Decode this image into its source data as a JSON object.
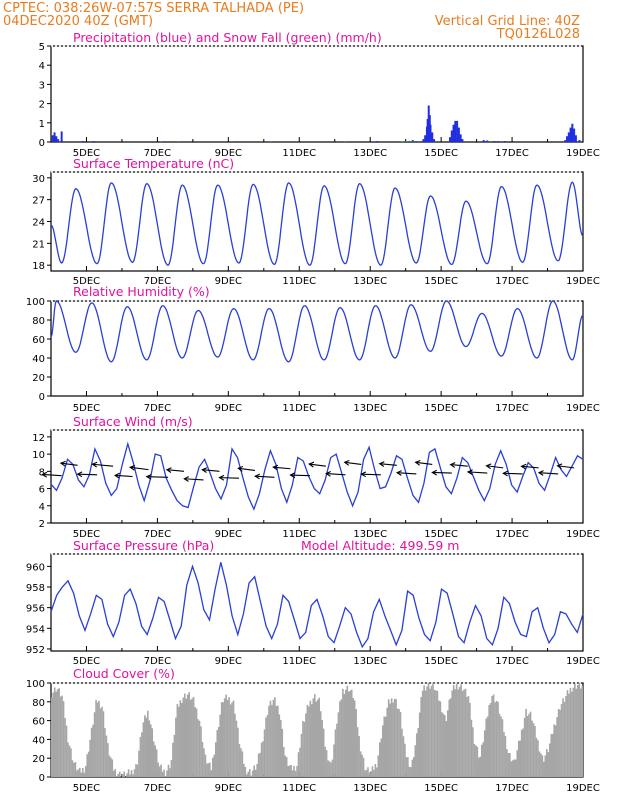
{
  "header": {
    "line1_left": "CPTEC:   038:26W-07:57S   SERRA TALHADA (PE)",
    "line2_left": "04DEC2020 40Z (GMT)",
    "line2_right": "Vertical Grid Line: 40Z",
    "line3_right": "TQ0126L028"
  },
  "colors": {
    "header": "#e87c1e",
    "panel_title": "#e0139c",
    "precip": "#1f2fe0",
    "snow": "#1a9c1a",
    "line": "#2a3fd6",
    "wind_arrow": "#000000",
    "cloud": "#a6a6a6"
  },
  "x_tick_labels": [
    "5DEC",
    "7DEC",
    "9DEC",
    "11DEC",
    "13DEC",
    "15DEC",
    "17DEC",
    "19DEC"
  ],
  "chart_data": [
    {
      "id": "precip",
      "type": "bar",
      "title": "Precipitation (blue) and Snow Fall (green) (mm/h)",
      "ylim": [
        0,
        5
      ],
      "yticks": [
        0,
        1,
        2,
        3,
        4,
        5
      ],
      "x_range_days": [
        4.0,
        19.0
      ],
      "series": [
        {
          "name": "Precipitation",
          "x": [
            4.05,
            4.1,
            4.15,
            4.2,
            4.3,
            4.9,
            5.2,
            7.1,
            7.6,
            9.1,
            10.2,
            12.3,
            13.2,
            14.1,
            14.2,
            14.3,
            14.5,
            14.55,
            14.6,
            14.62,
            14.65,
            14.68,
            14.7,
            14.75,
            14.8,
            15.25,
            15.3,
            15.35,
            15.4,
            15.45,
            15.5,
            15.55,
            15.6,
            16.2,
            16.3,
            16.5,
            16.6,
            16.8,
            18.5,
            18.55,
            18.6,
            18.65,
            18.7,
            18.75,
            18.8,
            18.9
          ],
          "values": [
            0.35,
            0.5,
            0.3,
            0.15,
            0.55,
            0.05,
            0.05,
            0.03,
            0.03,
            0.03,
            0.03,
            0.03,
            0.05,
            0.05,
            0.1,
            0.05,
            0.15,
            0.35,
            0.8,
            1.2,
            1.9,
            1.4,
            0.9,
            0.5,
            0.15,
            0.25,
            0.6,
            0.9,
            1.1,
            1.1,
            0.75,
            0.4,
            0.15,
            0.1,
            0.08,
            0.05,
            0.05,
            0.05,
            0.1,
            0.3,
            0.5,
            0.75,
            0.95,
            0.7,
            0.35,
            0.1
          ]
        },
        {
          "name": "Snow Fall",
          "x": [
            13.9,
            14.0,
            14.1,
            14.2,
            14.3
          ],
          "values": [
            0.02,
            0.04,
            0.04,
            0.03,
            0.02
          ]
        }
      ]
    },
    {
      "id": "temperature",
      "type": "line",
      "title": "Surface Temperature (nC)",
      "ylim": [
        17.2,
        30.8
      ],
      "yticks": [
        18,
        21,
        24,
        27,
        30
      ],
      "x_range_days": [
        4.0,
        19.0
      ],
      "daily": {
        "first_min_day": 4.3,
        "peak_offset": 0.4,
        "min_offset": 1.0,
        "mins": [
          18.3,
          18.2,
          18.4,
          18.0,
          18.2,
          18.3,
          18.1,
          18.0,
          18.2,
          18.0,
          18.3,
          18.1,
          18.2,
          18.4,
          18.6,
          18.8
        ],
        "maxs": [
          28.5,
          29.3,
          29.2,
          29.0,
          29.0,
          29.1,
          29.3,
          28.9,
          29.2,
          28.6,
          27.5,
          26.8,
          28.8,
          29.0,
          29.4,
          27.0
        ]
      },
      "start_value": 23.5,
      "end_value": 22.0
    },
    {
      "id": "humidity",
      "type": "line",
      "title": "Relative Humidity (%)",
      "ylim": [
        0,
        100
      ],
      "yticks": [
        0,
        20,
        40,
        60,
        80,
        100
      ],
      "x_range_days": [
        4.0,
        19.0
      ],
      "daily": {
        "first_max_day": 4.15,
        "min_offset": 0.55,
        "max_offset": 1.0,
        "maxs": [
          100,
          98,
          94,
          95,
          90,
          92,
          92,
          95,
          93,
          95,
          96,
          100,
          87,
          92,
          100,
          86
        ],
        "mins": [
          46,
          36,
          38,
          40,
          41,
          38,
          36,
          38,
          38,
          40,
          47,
          52,
          42,
          40,
          38,
          52
        ]
      },
      "start_value": 62,
      "end_value": 85
    },
    {
      "id": "wind",
      "type": "line",
      "title": "Surface Wind (m/s)",
      "ylim": [
        2,
        12.8
      ],
      "yticks": [
        2,
        4,
        6,
        8,
        10,
        12
      ],
      "x_range_days": [
        4.0,
        19.0
      ],
      "speed": [
        6.5,
        5.8,
        7.2,
        9.4,
        8.8,
        7.0,
        6.2,
        7.6,
        10.6,
        9.2,
        6.6,
        5.2,
        6.0,
        8.8,
        11.2,
        9.0,
        6.4,
        4.6,
        6.8,
        10.0,
        9.8,
        7.2,
        5.8,
        4.6,
        4.0,
        3.8,
        6.2,
        8.5,
        9.4,
        7.8,
        6.0,
        4.8,
        6.4,
        10.6,
        9.6,
        7.2,
        5.0,
        3.6,
        5.4,
        8.2,
        10.4,
        8.8,
        6.0,
        4.4,
        6.4,
        9.6,
        9.2,
        7.4,
        6.0,
        5.4,
        7.0,
        9.6,
        10.0,
        7.8,
        5.6,
        4.0,
        5.6,
        9.4,
        10.8,
        8.2,
        6.0,
        6.2,
        7.8,
        9.8,
        9.4,
        7.2,
        5.2,
        4.4,
        6.6,
        10.2,
        10.6,
        8.4,
        6.2,
        5.4,
        7.2,
        9.6,
        9.0,
        7.4,
        5.8,
        4.6,
        6.0,
        8.8,
        10.4,
        8.8,
        6.4,
        5.6,
        7.4,
        9.0,
        8.4,
        6.6,
        5.8,
        7.6,
        9.6,
        8.2,
        7.4,
        8.6,
        9.8,
        9.4
      ],
      "arrows": {
        "x_days": [
          4.3,
          4.75,
          5.3,
          5.75,
          6.3,
          6.75,
          7.3,
          7.75,
          8.3,
          8.75,
          9.3,
          9.75,
          10.3,
          10.75,
          11.3,
          11.75,
          12.3,
          12.75,
          13.3,
          13.75,
          14.3,
          14.75,
          15.3,
          15.75,
          16.3,
          16.75,
          17.3,
          17.75,
          18.3,
          18.75
        ],
        "y_ms": [
          7.5,
          8.7,
          7.6,
          8.6,
          7.4,
          8.2,
          7.3,
          8.0,
          7.0,
          8.0,
          7.2,
          8.1,
          7.3,
          8.3,
          7.5,
          8.6,
          7.6,
          8.8,
          7.6,
          8.7,
          7.7,
          8.8,
          7.8,
          8.6,
          7.8,
          8.4,
          7.7,
          8.4,
          7.7,
          8.4
        ],
        "direction_deg": [
          100,
          110,
          95,
          105,
          100,
          110,
          95,
          105,
          100,
          105,
          95,
          110,
          100,
          105,
          95,
          110,
          100,
          110,
          95,
          105,
          100,
          110,
          95,
          105,
          100,
          110,
          95,
          105,
          100,
          110
        ],
        "length_days": [
          0.55,
          0.5,
          0.55,
          0.6,
          0.5,
          0.55,
          0.6,
          0.5,
          0.55,
          0.5,
          0.55,
          0.5,
          0.55,
          0.5,
          0.55,
          0.5,
          0.55,
          0.5,
          0.55,
          0.5,
          0.55,
          0.5,
          0.55,
          0.5,
          0.55,
          0.5,
          0.55,
          0.5,
          0.55,
          0.5
        ]
      }
    },
    {
      "id": "pressure",
      "type": "line",
      "title": "Surface Pressure (hPa)",
      "annotation": "Model Altitude: 499.59  m",
      "ylim": [
        951.8,
        961.2
      ],
      "yticks": [
        952,
        954,
        956,
        958,
        960
      ],
      "x_range_days": [
        4.0,
        19.0
      ],
      "values": [
        955.6,
        957.2,
        958.0,
        958.6,
        957.4,
        955.2,
        953.8,
        955.4,
        957.2,
        956.8,
        954.4,
        953.2,
        954.6,
        957.2,
        957.8,
        956.4,
        954.2,
        953.4,
        955.0,
        957.0,
        956.6,
        954.8,
        953.0,
        954.2,
        958.2,
        960.0,
        958.4,
        955.8,
        954.8,
        957.8,
        960.4,
        958.2,
        955.2,
        953.4,
        955.4,
        958.4,
        959.0,
        956.6,
        954.2,
        953.0,
        954.4,
        957.2,
        956.6,
        954.8,
        953.0,
        953.6,
        956.2,
        956.8,
        955.2,
        953.2,
        952.6,
        954.2,
        956.0,
        955.4,
        953.6,
        952.2,
        953.0,
        955.6,
        956.8,
        955.2,
        953.8,
        952.4,
        953.8,
        957.6,
        957.2,
        955.0,
        953.4,
        952.8,
        954.6,
        957.8,
        957.4,
        955.4,
        953.2,
        952.6,
        954.6,
        956.2,
        955.2,
        953.0,
        952.4,
        954.0,
        957.0,
        956.4,
        954.6,
        953.4,
        953.2,
        955.6,
        956.0,
        954.0,
        952.6,
        953.4,
        955.6,
        955.4,
        954.4,
        953.6,
        955.4
      ]
    },
    {
      "id": "cloud",
      "type": "area",
      "title": "Cloud Cover (%)",
      "ylim": [
        0,
        100
      ],
      "yticks": [
        0,
        20,
        40,
        60,
        80,
        100
      ],
      "x_range_days": [
        4.0,
        19.0
      ],
      "values": [
        88,
        95,
        85,
        40,
        15,
        5,
        10,
        45,
        82,
        75,
        30,
        8,
        3,
        2,
        5,
        12,
        55,
        70,
        40,
        10,
        5,
        15,
        72,
        85,
        88,
        80,
        60,
        20,
        8,
        45,
        82,
        84,
        78,
        35,
        8,
        5,
        12,
        40,
        75,
        82,
        70,
        20,
        8,
        12,
        55,
        76,
        86,
        80,
        30,
        12,
        60,
        92,
        95,
        85,
        35,
        8,
        5,
        15,
        55,
        78,
        85,
        70,
        25,
        10,
        45,
        95,
        98,
        96,
        80,
        60,
        90,
        98,
        95,
        85,
        40,
        20,
        55,
        88,
        80,
        55,
        25,
        15,
        40,
        70,
        65,
        40,
        18,
        30,
        55,
        75,
        85,
        95,
        98,
        96
      ]
    }
  ]
}
